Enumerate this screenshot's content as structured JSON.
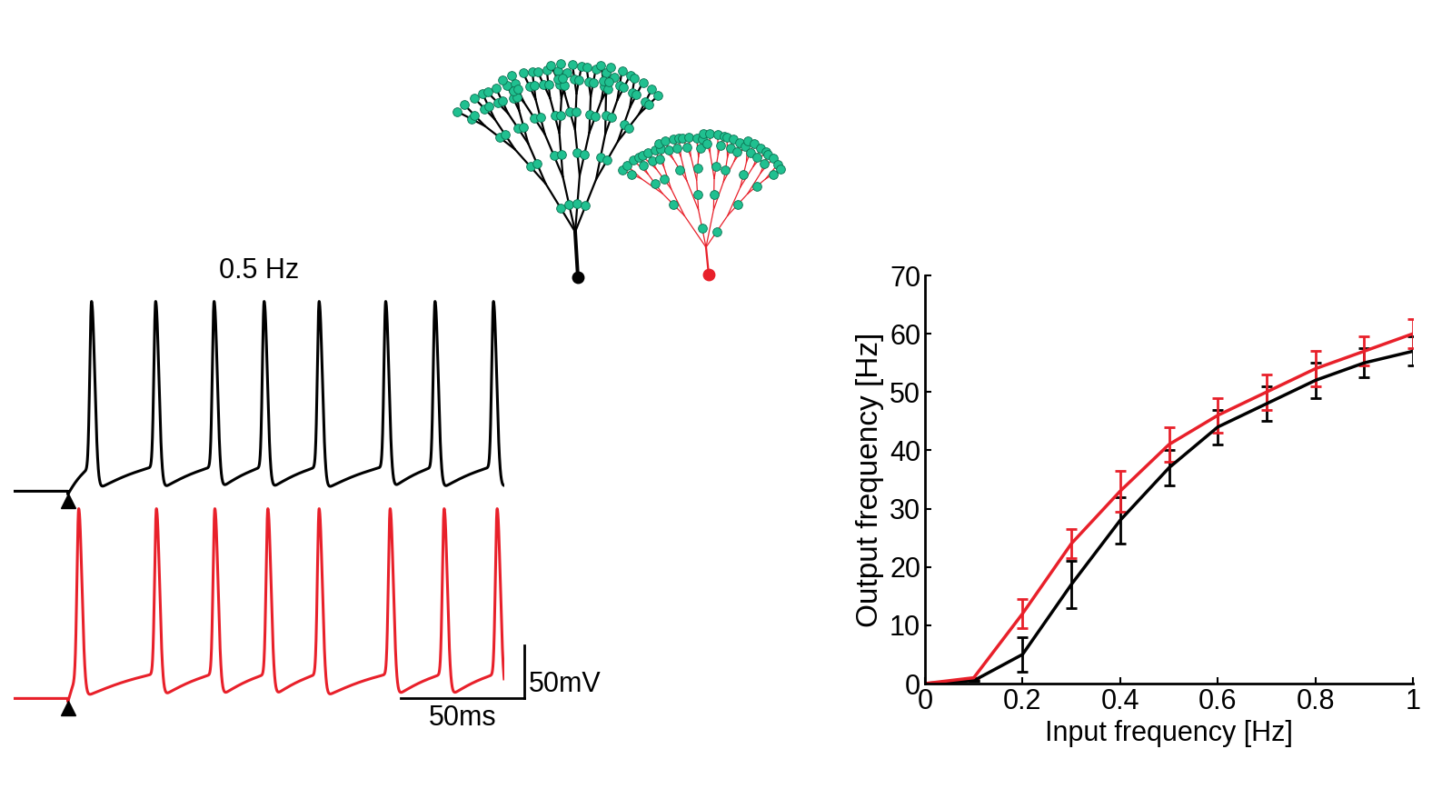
{
  "chart_data": [
    {
      "type": "trace",
      "title": "0.5 Hz",
      "tick_labels": false,
      "xlim": [
        -22,
        177
      ],
      "ylim": [
        -80,
        120
      ],
      "stimulus_time": 0,
      "baseline": -70,
      "peak": 110,
      "series": [
        {
          "color": "#000000",
          "spike_times": [
            9.6,
            35.6,
            59.3,
            79.6,
            101.9,
            128.9,
            148.9,
            172.6
          ]
        },
        {
          "color": "#e8202a",
          "spike_times": [
            4.4,
            35.9,
            59.6,
            81.1,
            101.9,
            130.7,
            152.6,
            174.1
          ]
        }
      ],
      "scale_bars": {
        "voltage": 50,
        "voltage_label": "50mV",
        "time": 50,
        "time_label": "50ms"
      }
    },
    {
      "type": "line",
      "x": [
        0,
        0.1,
        0.2,
        0.3,
        0.4,
        0.5,
        0.6,
        0.7,
        0.8,
        0.9,
        1
      ],
      "series": [
        {
          "color": "#000000",
          "values": [
            0,
            0.5,
            5,
            17,
            28,
            37,
            44,
            48,
            52,
            55,
            57
          ],
          "errors": [
            0,
            0,
            3,
            4,
            4,
            3,
            3,
            3,
            3,
            2.5,
            2.5
          ]
        },
        {
          "color": "#e8202a",
          "values": [
            0,
            1,
            12,
            24,
            33,
            41,
            46,
            50,
            54,
            57,
            60
          ],
          "errors": [
            0,
            0,
            2.5,
            2.5,
            3.5,
            3,
            3,
            3,
            3,
            2.5,
            2.5
          ]
        }
      ],
      "x_label": "Input frequency [Hz]",
      "y_label": "Output frequency [Hz]",
      "xlim": [
        0,
        1
      ],
      "ylim": [
        0,
        70
      ],
      "xticks": [
        0,
        0.2,
        0.4,
        0.6,
        0.8,
        1
      ],
      "yticks": [
        0,
        10,
        20,
        30,
        40,
        50,
        60,
        70
      ],
      "grid": false
    }
  ]
}
